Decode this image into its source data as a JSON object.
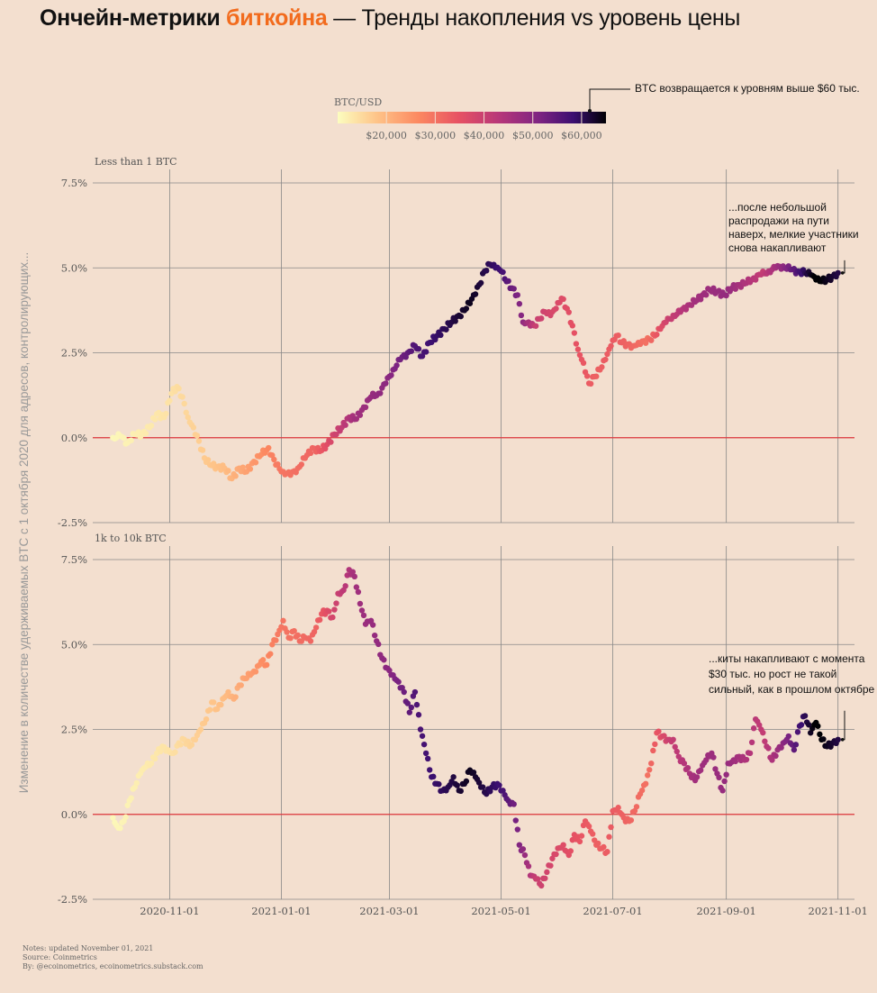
{
  "title": {
    "part1": "Ончейн-метрики ",
    "part2": "биткойна",
    "part3": " — Тренды накопления vs уровень цены"
  },
  "colorbar": {
    "title": "BTC/USD",
    "ticks": [
      20000,
      30000,
      40000,
      50000,
      60000
    ],
    "tick_labels": [
      "$20,000",
      "$30,000",
      "$40,000",
      "$50,000",
      "$60,000"
    ],
    "annotation": "BTC возвращается к уровням выше $60 тыс."
  },
  "ylabel": "Изменение в количестве удерживаемых BTC с 1 октября 2020 для адресов, контролирующих...",
  "notes": {
    "line1": "Notes: updated November 01, 2021",
    "line2": "Source: Coinmetrics",
    "line3": "By: @ecoinometrics, ecoinometrics.substack.com"
  },
  "colors": {
    "background": "#f3dfcf",
    "accent": "#f26b1d",
    "zero_line": "#e0393e",
    "grid": "#888888"
  },
  "chart_data": [
    {
      "type": "scatter",
      "title": "Less than 1 BTC",
      "x_type": "date",
      "xlim": [
        "2020-09-20",
        "2021-11-10"
      ],
      "ylim": [
        -2.5,
        7.5
      ],
      "y_ticks": [
        -2.5,
        0.0,
        2.5,
        5.0,
        7.5
      ],
      "y_tick_labels": [
        "-2.5%",
        "0.0%",
        "2.5%",
        "5.0%",
        "7.5%"
      ],
      "x_ticks": [
        "2020-11-01",
        "2021-01-01",
        "2021-03-01",
        "2021-05-01",
        "2021-07-01",
        "2021-09-01",
        "2021-11-01"
      ],
      "color_by": "BTC/USD",
      "annotation": "...после небольшой распродажи на пути наверх, мелкие участники снова накапливают",
      "points": [
        [
          "2020-10-01",
          0.0
        ],
        [
          "2020-10-05",
          0.05
        ],
        [
          "2020-10-09",
          -0.15
        ],
        [
          "2020-10-13",
          0.1
        ],
        [
          "2020-10-17",
          0.1
        ],
        [
          "2020-10-21",
          0.3
        ],
        [
          "2020-10-25",
          0.7
        ],
        [
          "2020-10-29",
          0.6
        ],
        [
          "2020-11-02",
          1.3
        ],
        [
          "2020-11-05",
          1.5
        ],
        [
          "2020-11-08",
          1.2
        ],
        [
          "2020-11-11",
          0.6
        ],
        [
          "2020-11-14",
          0.3
        ],
        [
          "2020-11-17",
          -0.1
        ],
        [
          "2020-11-20",
          -0.6
        ],
        [
          "2020-11-23",
          -0.8
        ],
        [
          "2020-11-27",
          -0.85
        ],
        [
          "2020-12-01",
          -0.9
        ],
        [
          "2020-12-05",
          -1.2
        ],
        [
          "2020-12-09",
          -0.9
        ],
        [
          "2020-12-13",
          -1.0
        ],
        [
          "2020-12-17",
          -0.7
        ],
        [
          "2020-12-21",
          -0.5
        ],
        [
          "2020-12-25",
          -0.3
        ],
        [
          "2020-12-29",
          -0.8
        ],
        [
          "2021-01-02",
          -1.0
        ],
        [
          "2021-01-06",
          -1.1
        ],
        [
          "2021-01-10",
          -0.9
        ],
        [
          "2021-01-14",
          -0.6
        ],
        [
          "2021-01-18",
          -0.3
        ],
        [
          "2021-01-22",
          -0.4
        ],
        [
          "2021-01-26",
          -0.2
        ],
        [
          "2021-01-30",
          0.1
        ],
        [
          "2021-02-03",
          0.3
        ],
        [
          "2021-02-07",
          0.6
        ],
        [
          "2021-02-11",
          0.55
        ],
        [
          "2021-02-15",
          0.9
        ],
        [
          "2021-02-19",
          1.2
        ],
        [
          "2021-02-23",
          1.3
        ],
        [
          "2021-02-27",
          1.6
        ],
        [
          "2021-03-03",
          2.0
        ],
        [
          "2021-03-07",
          2.3
        ],
        [
          "2021-03-11",
          2.5
        ],
        [
          "2021-03-15",
          2.7
        ],
        [
          "2021-03-19",
          2.4
        ],
        [
          "2021-03-23",
          2.8
        ],
        [
          "2021-03-27",
          3.0
        ],
        [
          "2021-03-31",
          3.2
        ],
        [
          "2021-04-04",
          3.4
        ],
        [
          "2021-04-08",
          3.6
        ],
        [
          "2021-04-12",
          3.8
        ],
        [
          "2021-04-16",
          4.2
        ],
        [
          "2021-04-19",
          4.5
        ],
        [
          "2021-04-22",
          4.9
        ],
        [
          "2021-04-25",
          5.1
        ],
        [
          "2021-04-28",
          5.0
        ],
        [
          "2021-05-01",
          4.9
        ],
        [
          "2021-05-04",
          4.6
        ],
        [
          "2021-05-07",
          4.4
        ],
        [
          "2021-05-10",
          4.2
        ],
        [
          "2021-05-13",
          3.4
        ],
        [
          "2021-05-16",
          3.4
        ],
        [
          "2021-05-19",
          3.3
        ],
        [
          "2021-05-22",
          3.5
        ],
        [
          "2021-05-25",
          3.7
        ],
        [
          "2021-05-28",
          3.6
        ],
        [
          "2021-05-31",
          3.8
        ],
        [
          "2021-06-03",
          4.1
        ],
        [
          "2021-06-06",
          3.8
        ],
        [
          "2021-06-09",
          3.3
        ],
        [
          "2021-06-12",
          2.6
        ],
        [
          "2021-06-15",
          2.2
        ],
        [
          "2021-06-18",
          1.6
        ],
        [
          "2021-06-21",
          1.8
        ],
        [
          "2021-06-24",
          2.0
        ],
        [
          "2021-06-27",
          2.3
        ],
        [
          "2021-06-30",
          2.7
        ],
        [
          "2021-07-03",
          3.0
        ],
        [
          "2021-07-06",
          2.8
        ],
        [
          "2021-07-09",
          2.75
        ],
        [
          "2021-07-12",
          2.7
        ],
        [
          "2021-07-15",
          2.8
        ],
        [
          "2021-07-18",
          2.85
        ],
        [
          "2021-07-21",
          2.9
        ],
        [
          "2021-07-24",
          3.0
        ],
        [
          "2021-07-27",
          3.2
        ],
        [
          "2021-07-30",
          3.4
        ],
        [
          "2021-08-03",
          3.6
        ],
        [
          "2021-08-07",
          3.7
        ],
        [
          "2021-08-11",
          3.9
        ],
        [
          "2021-08-15",
          4.0
        ],
        [
          "2021-08-19",
          4.2
        ],
        [
          "2021-08-23",
          4.35
        ],
        [
          "2021-08-27",
          4.3
        ],
        [
          "2021-08-31",
          4.2
        ],
        [
          "2021-09-04",
          4.4
        ],
        [
          "2021-09-08",
          4.5
        ],
        [
          "2021-09-12",
          4.55
        ],
        [
          "2021-09-16",
          4.7
        ],
        [
          "2021-09-20",
          4.8
        ],
        [
          "2021-09-24",
          4.9
        ],
        [
          "2021-09-28",
          5.0
        ],
        [
          "2021-10-02",
          5.05
        ],
        [
          "2021-10-06",
          4.95
        ],
        [
          "2021-10-10",
          4.9
        ],
        [
          "2021-10-14",
          4.85
        ],
        [
          "2021-10-17",
          4.8
        ],
        [
          "2021-10-20",
          4.65
        ],
        [
          "2021-10-23",
          4.6
        ],
        [
          "2021-10-26",
          4.65
        ],
        [
          "2021-10-29",
          4.75
        ],
        [
          "2021-11-01",
          4.85
        ]
      ]
    },
    {
      "type": "scatter",
      "title": "1k to 10k BTC",
      "x_type": "date",
      "xlim": [
        "2020-09-20",
        "2021-11-10"
      ],
      "ylim": [
        -2.5,
        7.5
      ],
      "y_ticks": [
        -2.5,
        0.0,
        2.5,
        5.0,
        7.5
      ],
      "y_tick_labels": [
        "-2.5%",
        "0.0%",
        "2.5%",
        "5.0%",
        "7.5%"
      ],
      "x_ticks": [
        "2020-11-01",
        "2021-01-01",
        "2021-03-01",
        "2021-05-01",
        "2021-07-01",
        "2021-09-01",
        "2021-11-01"
      ],
      "x_tick_labels": [
        "2020-11-01",
        "2021-01-01",
        "2021-03-01",
        "2021-05-01",
        "2021-07-01",
        "2021-09-01",
        "2021-11-01"
      ],
      "color_by": "BTC/USD",
      "annotation": "...киты накапливают с момента $30 тыс. но рост не такой сильный, как в прошлом октябре",
      "points": [
        [
          "2020-10-01",
          -0.1
        ],
        [
          "2020-10-04",
          -0.4
        ],
        [
          "2020-10-07",
          -0.2
        ],
        [
          "2020-10-10",
          0.4
        ],
        [
          "2020-10-13",
          0.8
        ],
        [
          "2020-10-16",
          1.2
        ],
        [
          "2020-10-19",
          1.4
        ],
        [
          "2020-10-22",
          1.5
        ],
        [
          "2020-10-25",
          1.8
        ],
        [
          "2020-10-28",
          2.0
        ],
        [
          "2020-10-31",
          1.9
        ],
        [
          "2020-11-03",
          1.8
        ],
        [
          "2020-11-06",
          2.1
        ],
        [
          "2020-11-09",
          2.2
        ],
        [
          "2020-11-12",
          2.0
        ],
        [
          "2020-11-15",
          2.2
        ],
        [
          "2020-11-18",
          2.5
        ],
        [
          "2020-11-21",
          2.8
        ],
        [
          "2020-11-24",
          3.3
        ],
        [
          "2020-11-27",
          3.1
        ],
        [
          "2020-11-30",
          3.4
        ],
        [
          "2020-12-03",
          3.6
        ],
        [
          "2020-12-06",
          3.4
        ],
        [
          "2020-12-09",
          3.8
        ],
        [
          "2020-12-12",
          4.0
        ],
        [
          "2020-12-15",
          4.1
        ],
        [
          "2020-12-18",
          4.2
        ],
        [
          "2020-12-21",
          4.5
        ],
        [
          "2020-12-24",
          4.4
        ],
        [
          "2020-12-27",
          5.0
        ],
        [
          "2020-12-30",
          5.3
        ],
        [
          "2021-01-02",
          5.7
        ],
        [
          "2021-01-05",
          5.2
        ],
        [
          "2021-01-08",
          5.4
        ],
        [
          "2021-01-11",
          5.1
        ],
        [
          "2021-01-14",
          5.2
        ],
        [
          "2021-01-17",
          5.1
        ],
        [
          "2021-01-20",
          5.5
        ],
        [
          "2021-01-23",
          5.9
        ],
        [
          "2021-01-26",
          6.0
        ],
        [
          "2021-01-29",
          5.8
        ],
        [
          "2021-02-01",
          6.5
        ],
        [
          "2021-02-04",
          6.6
        ],
        [
          "2021-02-07",
          7.2
        ],
        [
          "2021-02-10",
          7.0
        ],
        [
          "2021-02-13",
          6.2
        ],
        [
          "2021-02-16",
          5.6
        ],
        [
          "2021-02-19",
          5.7
        ],
        [
          "2021-02-22",
          5.1
        ],
        [
          "2021-02-25",
          4.6
        ],
        [
          "2021-02-28",
          4.3
        ],
        [
          "2021-03-03",
          4.1
        ],
        [
          "2021-03-06",
          3.9
        ],
        [
          "2021-03-09",
          3.6
        ],
        [
          "2021-03-12",
          3.0
        ],
        [
          "2021-03-15",
          3.6
        ],
        [
          "2021-03-18",
          2.5
        ],
        [
          "2021-03-21",
          1.8
        ],
        [
          "2021-03-24",
          1.1
        ],
        [
          "2021-03-27",
          0.9
        ],
        [
          "2021-03-30",
          0.7
        ],
        [
          "2021-04-02",
          0.8
        ],
        [
          "2021-04-05",
          1.1
        ],
        [
          "2021-04-08",
          0.7
        ],
        [
          "2021-04-11",
          0.9
        ],
        [
          "2021-04-14",
          1.3
        ],
        [
          "2021-04-17",
          1.1
        ],
        [
          "2021-04-20",
          0.8
        ],
        [
          "2021-04-23",
          0.6
        ],
        [
          "2021-04-26",
          0.8
        ],
        [
          "2021-04-29",
          0.9
        ],
        [
          "2021-05-02",
          0.7
        ],
        [
          "2021-05-05",
          0.4
        ],
        [
          "2021-05-08",
          0.3
        ],
        [
          "2021-05-11",
          -0.9
        ],
        [
          "2021-05-14",
          -1.2
        ],
        [
          "2021-05-17",
          -1.8
        ],
        [
          "2021-05-20",
          -1.9
        ],
        [
          "2021-05-23",
          -2.1
        ],
        [
          "2021-05-26",
          -1.7
        ],
        [
          "2021-05-29",
          -1.3
        ],
        [
          "2021-06-01",
          -1.0
        ],
        [
          "2021-06-04",
          -0.9
        ],
        [
          "2021-06-07",
          -1.2
        ],
        [
          "2021-06-10",
          -0.6
        ],
        [
          "2021-06-13",
          -0.8
        ],
        [
          "2021-06-16",
          -0.2
        ],
        [
          "2021-06-19",
          -0.5
        ],
        [
          "2021-06-22",
          -0.9
        ],
        [
          "2021-06-25",
          -1.0
        ],
        [
          "2021-06-28",
          -1.1
        ],
        [
          "2021-07-01",
          0.1
        ],
        [
          "2021-07-04",
          0.2
        ],
        [
          "2021-07-07",
          -0.1
        ],
        [
          "2021-07-10",
          -0.2
        ],
        [
          "2021-07-13",
          0.1
        ],
        [
          "2021-07-16",
          0.6
        ],
        [
          "2021-07-19",
          0.9
        ],
        [
          "2021-07-22",
          1.5
        ],
        [
          "2021-07-25",
          2.4
        ],
        [
          "2021-07-28",
          2.3
        ],
        [
          "2021-07-31",
          2.2
        ],
        [
          "2021-08-03",
          2.2
        ],
        [
          "2021-08-06",
          1.7
        ],
        [
          "2021-08-09",
          1.5
        ],
        [
          "2021-08-12",
          1.2
        ],
        [
          "2021-08-15",
          1.0
        ],
        [
          "2021-08-18",
          1.3
        ],
        [
          "2021-08-21",
          1.6
        ],
        [
          "2021-08-24",
          1.8
        ],
        [
          "2021-08-27",
          1.2
        ],
        [
          "2021-08-30",
          0.7
        ],
        [
          "2021-09-02",
          1.5
        ],
        [
          "2021-09-05",
          1.6
        ],
        [
          "2021-09-08",
          1.7
        ],
        [
          "2021-09-11",
          1.6
        ],
        [
          "2021-09-14",
          1.8
        ],
        [
          "2021-09-17",
          2.8
        ],
        [
          "2021-09-20",
          2.5
        ],
        [
          "2021-09-23",
          2.0
        ],
        [
          "2021-09-26",
          1.6
        ],
        [
          "2021-09-29",
          1.9
        ],
        [
          "2021-10-02",
          2.1
        ],
        [
          "2021-10-05",
          2.3
        ],
        [
          "2021-10-08",
          1.9
        ],
        [
          "2021-10-11",
          2.6
        ],
        [
          "2021-10-14",
          2.9
        ],
        [
          "2021-10-17",
          2.4
        ],
        [
          "2021-10-20",
          2.7
        ],
        [
          "2021-10-23",
          2.2
        ],
        [
          "2021-10-26",
          2.0
        ],
        [
          "2021-10-29",
          2.1
        ],
        [
          "2021-11-01",
          2.2
        ]
      ]
    }
  ],
  "btc_price": {
    "dates": [
      "2020-10-01",
      "2020-11-01",
      "2020-12-01",
      "2021-01-01",
      "2021-01-20",
      "2021-02-10",
      "2021-03-01",
      "2021-03-15",
      "2021-04-14",
      "2021-05-01",
      "2021-05-12",
      "2021-05-20",
      "2021-06-01",
      "2021-06-22",
      "2021-07-01",
      "2021-07-20",
      "2021-08-01",
      "2021-08-15",
      "2021-09-01",
      "2021-09-21",
      "2021-10-01",
      "2021-10-20",
      "2021-11-01"
    ],
    "values": [
      10800,
      13800,
      19000,
      29300,
      32000,
      46000,
      49500,
      56000,
      63500,
      57800,
      50000,
      40000,
      37000,
      32500,
      33500,
      30000,
      40000,
      46000,
      48000,
      41000,
      48000,
      66000,
      61000
    ]
  }
}
